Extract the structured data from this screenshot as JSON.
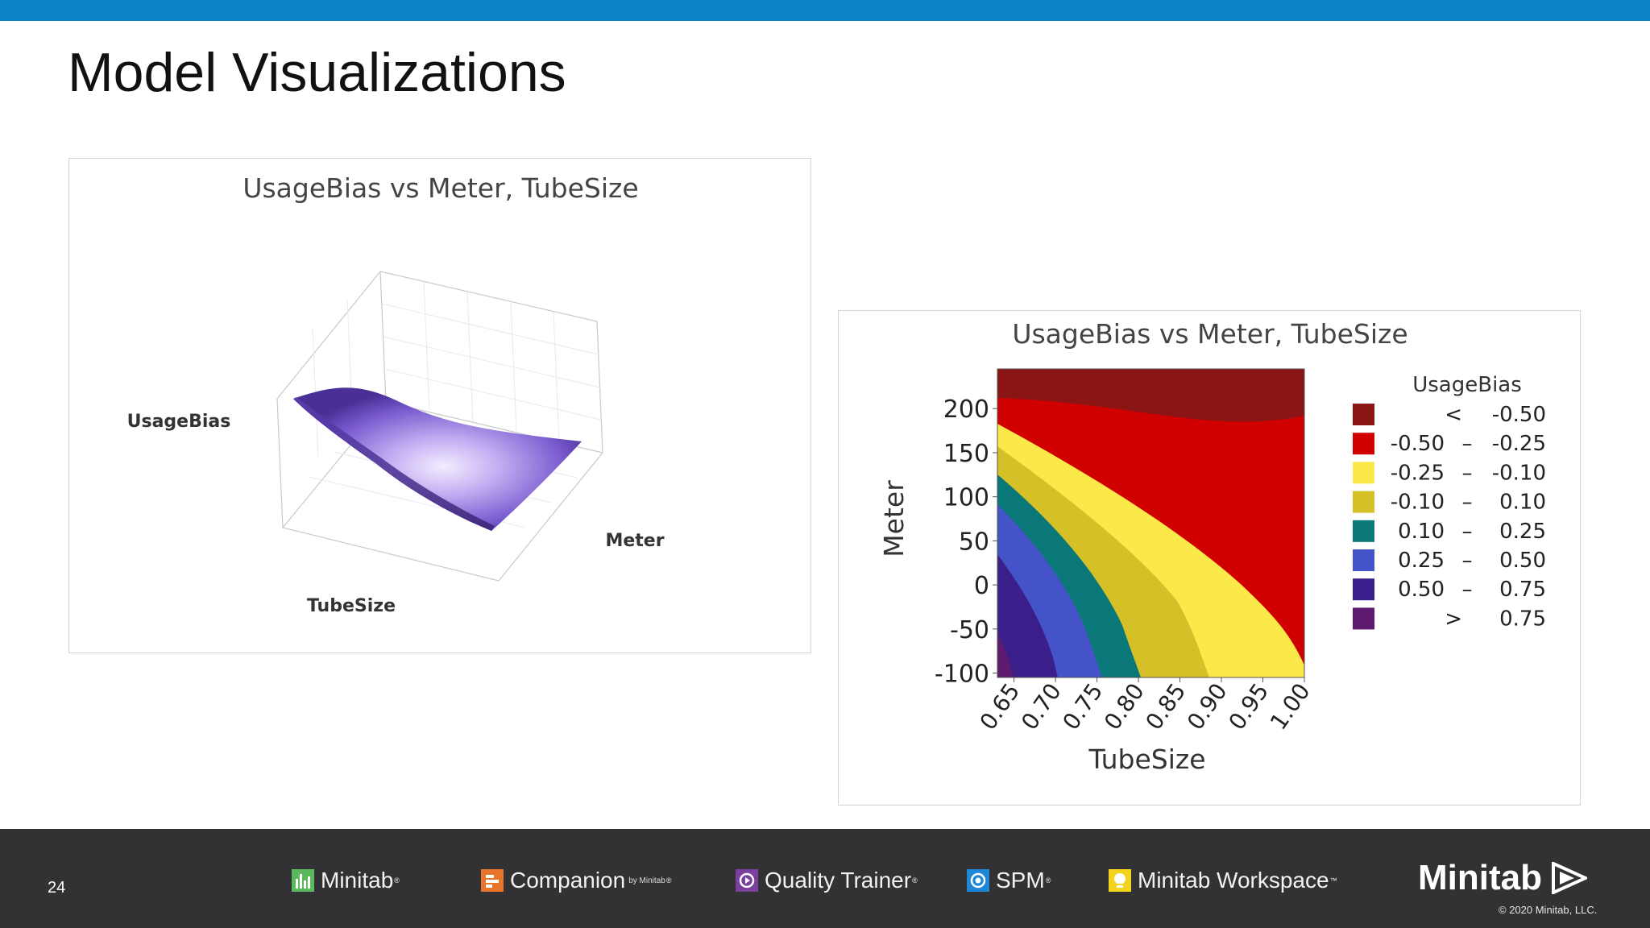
{
  "slide": {
    "title": "Model Visualizations",
    "page_number": "24",
    "accent_color": "#0b84c6"
  },
  "footer": {
    "products": [
      {
        "name": "Minitab",
        "mark": "®",
        "icon": "minitab-bar-chart-icon",
        "color": "#5cb85c"
      },
      {
        "name": "Companion",
        "mark": "®",
        "suffix": "by Minitab",
        "icon": "companion-icon",
        "color": "#e8742a"
      },
      {
        "name": "Quality Trainer",
        "mark": "®",
        "icon": "quality-trainer-icon",
        "color": "#7b3fa0"
      },
      {
        "name": "SPM",
        "mark": "®",
        "icon": "spm-icon",
        "color": "#1e88d6"
      },
      {
        "name": "Minitab Workspace",
        "mark": "™",
        "icon": "workspace-icon",
        "color": "#f2d41c"
      }
    ],
    "brand": "Minitab",
    "copyright": "© 2020 Minitab, LLC."
  },
  "chart_data": [
    {
      "type": "surface",
      "title": "UsageBias vs Meter, TubeSize",
      "zlabel": "UsageBias",
      "xlabel": "TubeSize",
      "ylabel": "Meter",
      "colors": [
        "#5b3fb0",
        "#9a82e6",
        "#f0e6ff",
        "#48307f"
      ]
    },
    {
      "type": "contour",
      "title": "UsageBias vs Meter, TubeSize",
      "xlabel": "TubeSize",
      "ylabel": "Meter",
      "x_ticks": [
        "0.65",
        "0.70",
        "0.75",
        "0.80",
        "0.85",
        "0.90",
        "0.95",
        "1.00"
      ],
      "y_ticks": [
        "200",
        "150",
        "100",
        "50",
        "0",
        "-50",
        "-100"
      ],
      "xlim": [
        0.63,
        1.0
      ],
      "ylim": [
        -105,
        245
      ],
      "legend_title": "UsageBias",
      "legend": [
        {
          "lo": "<",
          "sep": "",
          "hi": "-0.50",
          "color": "#8b1414"
        },
        {
          "lo": "-0.50",
          "sep": "–",
          "hi": "-0.25",
          "color": "#d10000"
        },
        {
          "lo": "-0.25",
          "sep": "–",
          "hi": "-0.10",
          "color": "#fbe94a"
        },
        {
          "lo": "-0.10",
          "sep": "–",
          "hi": "0.10",
          "color": "#d6c028"
        },
        {
          "lo": "0.10",
          "sep": "–",
          "hi": "0.25",
          "color": "#0a7878"
        },
        {
          "lo": "0.25",
          "sep": "–",
          "hi": "0.50",
          "color": "#4454c8"
        },
        {
          "lo": "0.50",
          "sep": "–",
          "hi": "0.75",
          "color": "#3a1f8a"
        },
        {
          "lo": ">",
          "sep": "",
          "hi": "0.75",
          "color": "#5e1a6e"
        }
      ]
    }
  ]
}
